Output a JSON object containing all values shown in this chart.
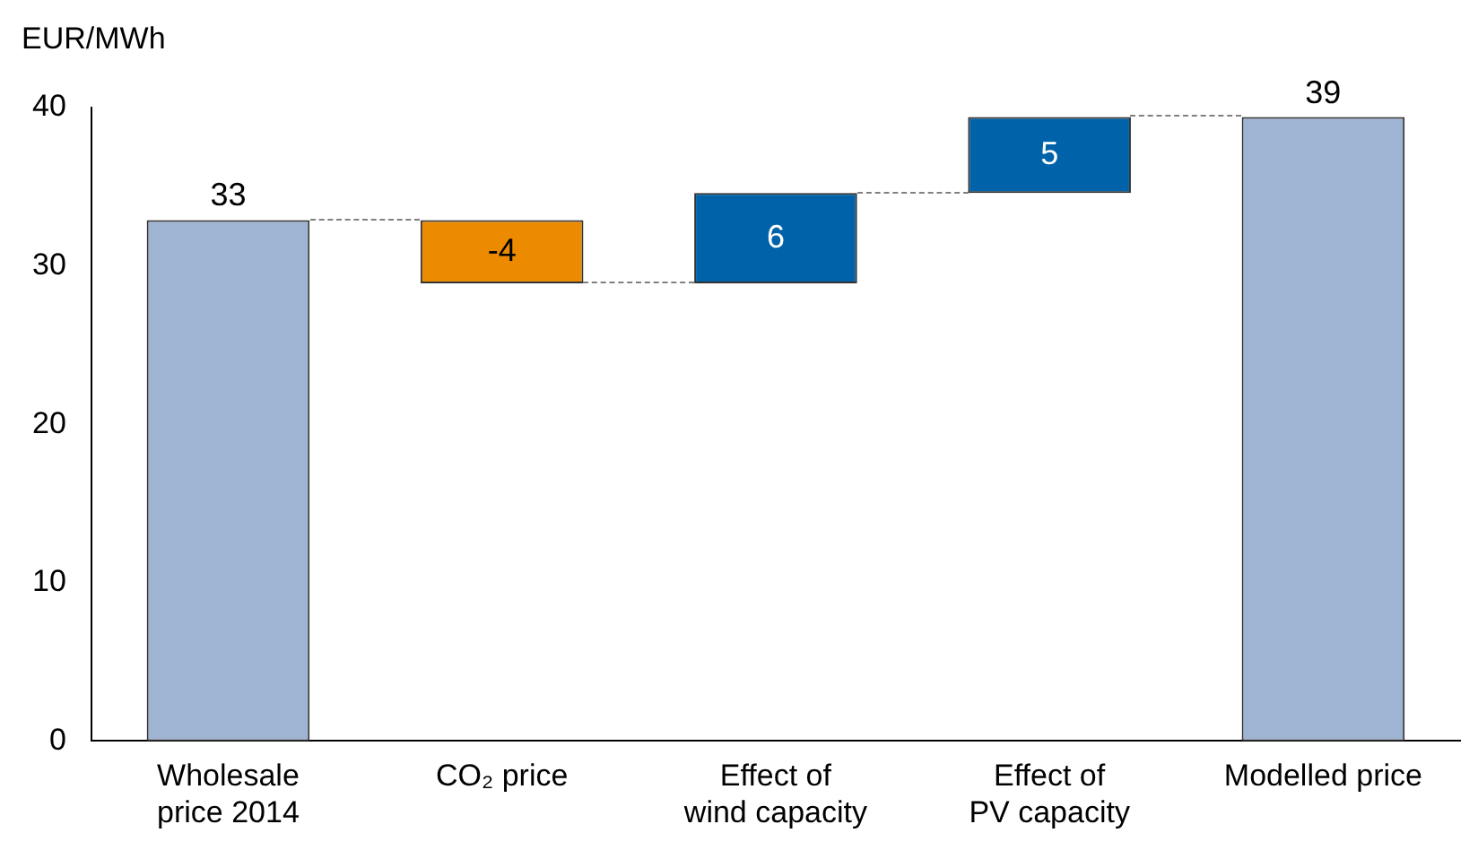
{
  "chart_data": {
    "type": "bar",
    "ylabel": "EUR/MWh",
    "categories": [
      "Wholesale\nprice 2014",
      "CO₂ price",
      "Effect of\nwind capacity",
      "Effect of\nPV capacity",
      "Modelled price"
    ],
    "base": [
      0,
      32.9,
      28.9,
      34.6,
      0
    ],
    "values": [
      32.9,
      -4,
      5.7,
      4.8,
      39.4
    ],
    "value_labels": [
      "33",
      "-4",
      "6",
      "5",
      "39"
    ],
    "colors": [
      "#9fb3d3",
      "#ed8b00",
      "#0062a8",
      "#0062a8",
      "#9fb3d3"
    ],
    "ylim": [
      0,
      40
    ],
    "yticks": [
      0,
      10,
      20,
      30,
      40
    ],
    "grid": false,
    "legend": false
  }
}
